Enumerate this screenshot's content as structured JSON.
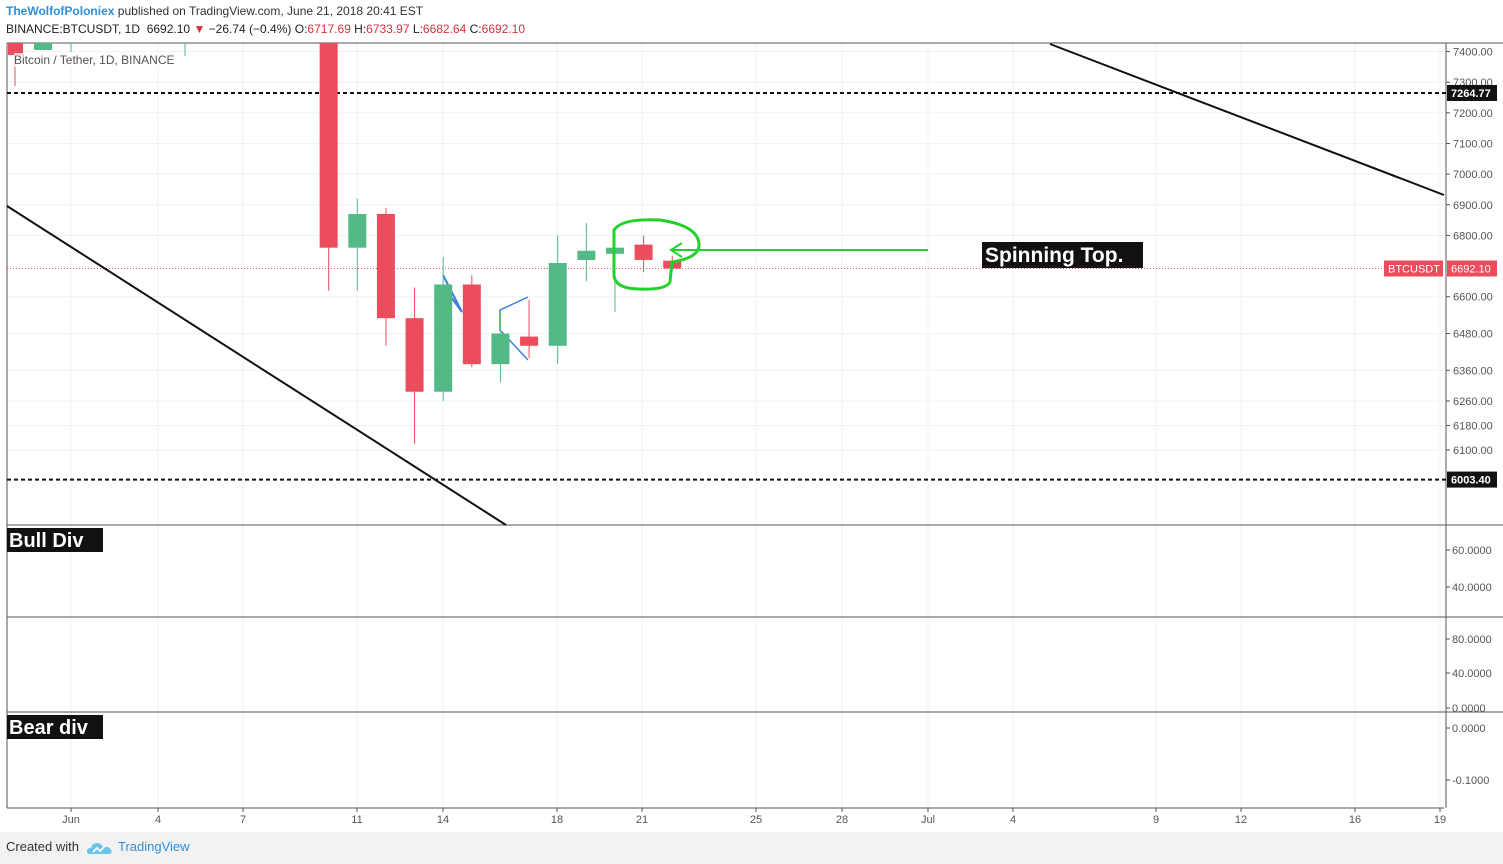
{
  "header": {
    "author": "TheWolfofPoloniex",
    "published": "published on TradingView.com, June 21, 2018 20:41 EST",
    "symbol_line": "BINANCE:BTCUSDT, 1D",
    "last": "6692.10",
    "change": "−26.74 (−0.4%)",
    "o_label": "O:",
    "o": "6717.69",
    "h_label": "H:",
    "h": "6733.97",
    "l_label": "L:",
    "l": "6682.64",
    "c_label": "C:",
    "c": "6692.10"
  },
  "legend": "Bitcoin / Tether, 1D, BINANCE",
  "footer": {
    "created": "Created with",
    "brand": "TradingView"
  },
  "colors": {
    "up": "#53b987",
    "down": "#eb4d5c",
    "annotation": "#23d12a",
    "pattern": "#3b82d6",
    "accent": "#2f8fd8"
  },
  "chart_data": {
    "type": "candlestick",
    "title": "Bitcoin / Tether, 1D, BINANCE",
    "x_ticks": [
      "Jun",
      "4",
      "7",
      "11",
      "14",
      "18",
      "21",
      "25",
      "28",
      "Jul",
      "4",
      "9",
      "12",
      "16",
      "19"
    ],
    "price_axis": {
      "ticks": [
        "7400.00",
        "7300.00",
        "7264.77",
        "7200.00",
        "7100.00",
        "7000.00",
        "6900.00",
        "6800.00",
        "6692.10",
        "6600.00",
        "6480.00",
        "6360.00",
        "6260.00",
        "6180.00",
        "6100.00",
        "6003.40"
      ],
      "last_price_label": "BTCUSDT",
      "last_price": 6692.1
    },
    "horizontal_levels": [
      {
        "value": 7264.77,
        "label": "7264.77",
        "style": "dashed"
      },
      {
        "value": 6003.4,
        "label": "6003.40",
        "style": "dashed"
      }
    ],
    "candles": [
      {
        "date": "Jun 10",
        "o": 7500,
        "h": 7500,
        "l": 6620,
        "c": 6760
      },
      {
        "date": "Jun 11",
        "o": 6760,
        "h": 6920,
        "l": 6620,
        "c": 6870
      },
      {
        "date": "Jun 12",
        "o": 6870,
        "h": 6890,
        "l": 6440,
        "c": 6530
      },
      {
        "date": "Jun 13",
        "o": 6530,
        "h": 6630,
        "l": 6120,
        "c": 6290
      },
      {
        "date": "Jun 14",
        "o": 6290,
        "h": 6730,
        "l": 6260,
        "c": 6640
      },
      {
        "date": "Jun 15",
        "o": 6640,
        "h": 6670,
        "l": 6370,
        "c": 6380
      },
      {
        "date": "Jun 16",
        "o": 6380,
        "h": 6550,
        "l": 6320,
        "c": 6480
      },
      {
        "date": "Jun 17",
        "o": 6470,
        "h": 6590,
        "l": 6400,
        "c": 6440
      },
      {
        "date": "Jun 18",
        "o": 6440,
        "h": 6800,
        "l": 6380,
        "c": 6710
      },
      {
        "date": "Jun 19",
        "o": 6720,
        "h": 6840,
        "l": 6650,
        "c": 6750
      },
      {
        "date": "Jun 20",
        "o": 6740,
        "h": 6770,
        "l": 6550,
        "c": 6760
      },
      {
        "date": "Jun 21",
        "o": 6770,
        "h": 6800,
        "l": 6680,
        "c": 6720
      },
      {
        "date": "Jun 22",
        "o": 6717.69,
        "h": 6733.97,
        "l": 6682.64,
        "c": 6692.1
      }
    ],
    "annotations": [
      {
        "text": "Spinning Top."
      }
    ],
    "indicator_panes": [
      {
        "label": "Bull Div",
        "ticks": [
          "60.0000",
          "40.0000"
        ]
      },
      {
        "label": "",
        "ticks": [
          "80.0000",
          "40.0000",
          "0.0000"
        ]
      },
      {
        "label": "Bear div",
        "ticks": [
          "0.0000",
          "-0.1000"
        ]
      }
    ]
  }
}
